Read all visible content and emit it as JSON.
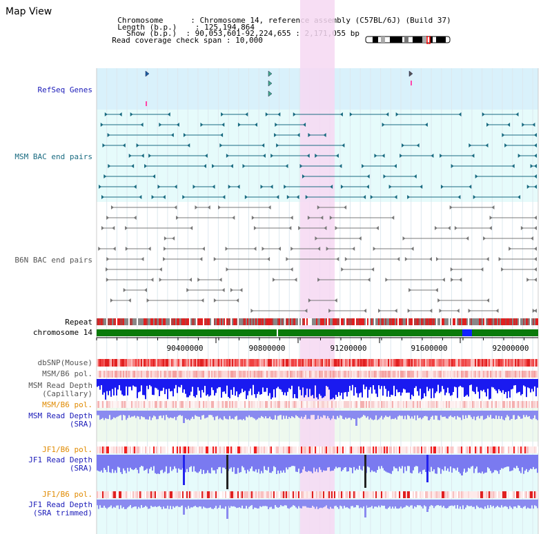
{
  "page_title": "Map View",
  "info": {
    "chromosome_label": "Chromosome",
    "chromosome_value": "Chromosome 14, reference assembly (C57BL/6J) (Build 37)",
    "length_label": "Length (b.p.)",
    "length_value": "125,194,864",
    "show_label": "Show (b.p.)",
    "show_value": "90,053,601-92,224,655 : 2,171,055 bp",
    "span_label": "Read coverage check span",
    "span_value": "10,000"
  },
  "tracks": {
    "refseq": "RefSeq Genes",
    "msm_bac": "MSM BAC end pairs",
    "b6n_bac": "B6N BAC end pairs",
    "repeat": "Repeat",
    "chromosome": "chromosome 14",
    "dbsnp": "dbSNP(Mouse)",
    "msm_b6_pol": "MSM/B6 pol.",
    "msm_depth_cap_1": "MSM Read Depth",
    "msm_depth_cap_2": "(Capillary)",
    "msm_b6_pol_2": "MSM/B6 pol.",
    "msm_depth_sra_1": "MSM Read Depth",
    "msm_depth_sra_2": "(SRA)",
    "jf1_b6_pol": "JF1/B6 pol.",
    "jf1_depth_sra_1": "JF1 Read Depth",
    "jf1_depth_sra_2": "(SRA)",
    "jf1_b6_pol_2": "JF1/B6 pol.",
    "jf1_depth_trim_1": "JF1 Read Depth",
    "jf1_depth_trim_2": "(SRA trimmed)"
  },
  "axis_ticks": [
    "90400000",
    "90800000",
    "91200000",
    "91600000",
    "92000000"
  ],
  "colors": {
    "refseq_bg": "#d9f1fb",
    "bac_bg": "#e6fbfb",
    "highlight": "#f6d8f2",
    "chromosome_bar": "#0a7a0a",
    "chromosome_mark": "#1020ff",
    "msm_depth": "#1a1af0",
    "sra_depth": "#8a8af0",
    "snp": "#f02020"
  }
}
